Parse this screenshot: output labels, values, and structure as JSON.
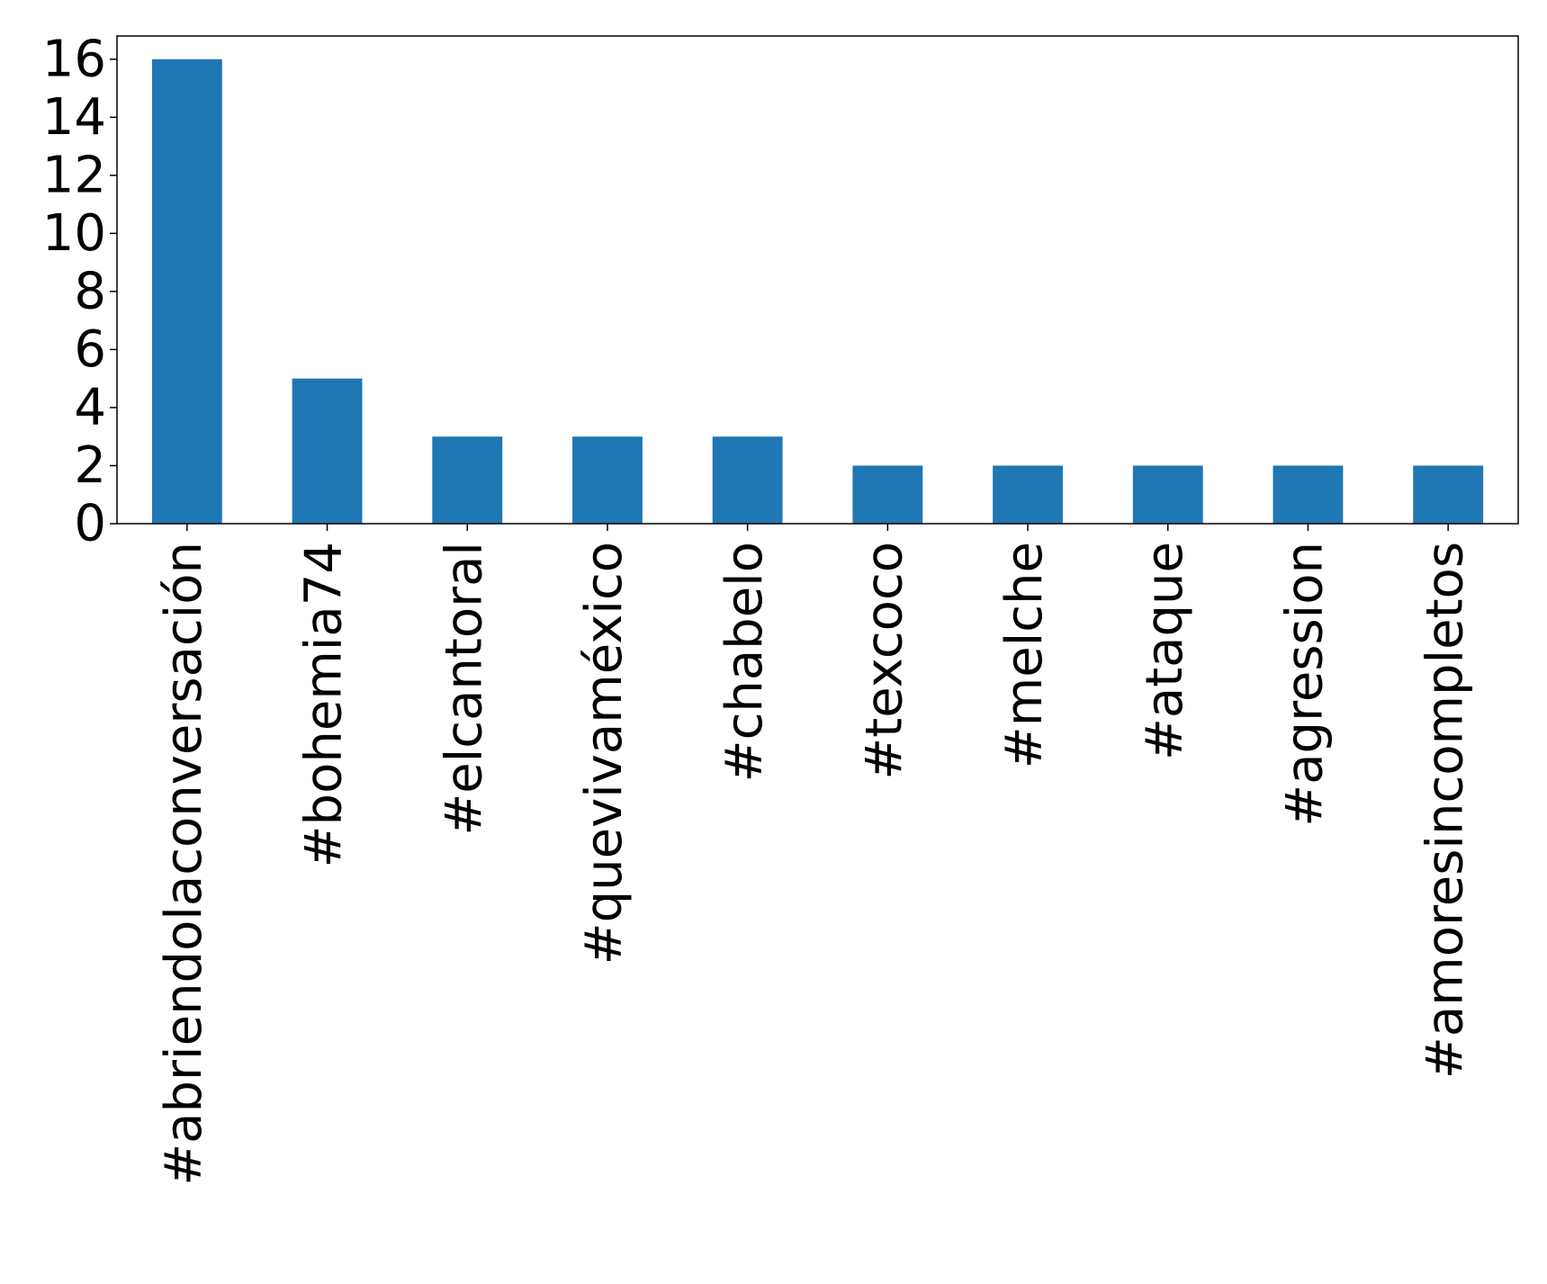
{
  "chart_data": {
    "type": "bar",
    "categories": [
      "#abriendolaconversación",
      "#bohemia74",
      "#elcantoral",
      "#quevivaméxico",
      "#chabelo",
      "#texcoco",
      "#melche",
      "#ataque",
      "#agression",
      "#amoresincompletos"
    ],
    "values": [
      16,
      5,
      3,
      3,
      3,
      2,
      2,
      2,
      2,
      2
    ],
    "title": "",
    "xlabel": "",
    "ylabel": "",
    "ylim": [
      0,
      16.8
    ],
    "yticks": [
      0,
      2,
      4,
      6,
      8,
      10,
      12,
      14,
      16
    ],
    "grid": false,
    "bar_color": "#1f77b4"
  }
}
